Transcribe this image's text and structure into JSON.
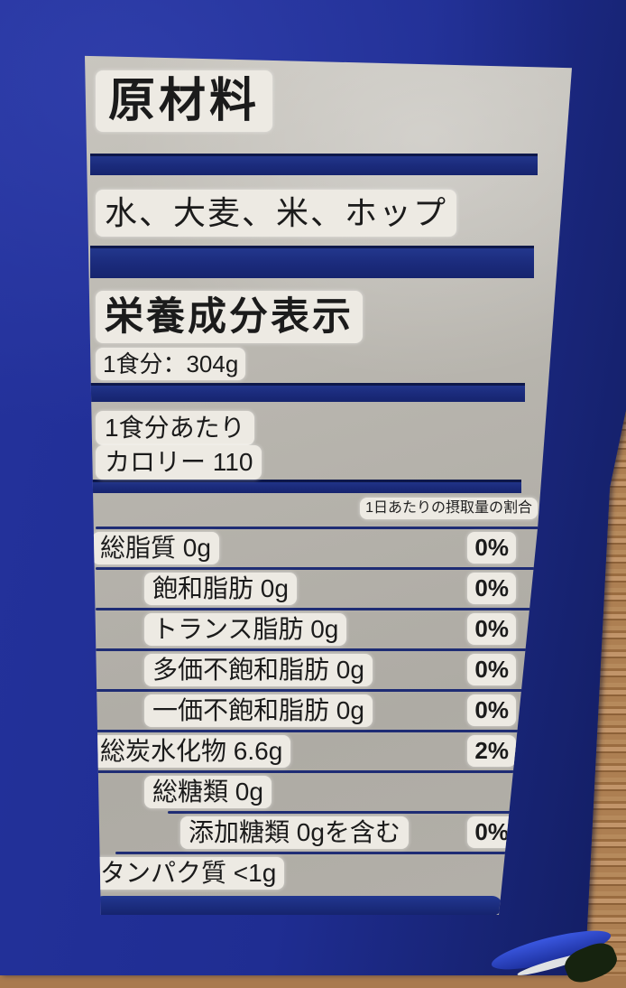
{
  "scene": {
    "description": "photo of a blue can on a wood table with a silver Japanese nutrition label"
  },
  "colors": {
    "can_blue": "#1f2d92",
    "bar_navy": "#1b2b7c",
    "label_silver": "#b5b2ab",
    "text_patch_white": "#edeae3",
    "text_black": "#1b1b1b",
    "wood_tan": "#ad7f52"
  },
  "label": {
    "ingredients_title": "原材料",
    "ingredients_list": "水、大麦、米、ホップ",
    "nutrition_title": "栄養成分表示",
    "serving_size": "1食分：304g",
    "per_serving_heading": "1食分あたり",
    "calories_label": "カロリー",
    "calories_value": "110",
    "daily_value_note": "1日あたりの摂取量の割合",
    "nutrients": [
      {
        "name": "総脂質 0g",
        "daily_value": "0%",
        "level": 0
      },
      {
        "name": "飽和脂肪 0g",
        "daily_value": "0%",
        "level": 1
      },
      {
        "name": "トランス脂肪 0g",
        "daily_value": "0%",
        "level": 1
      },
      {
        "name": "多価不飽和脂肪 0g",
        "daily_value": "0%",
        "level": 1
      },
      {
        "name": "一価不飽和脂肪 0g",
        "daily_value": "0%",
        "level": 1
      },
      {
        "name": "総炭水化物 6.6g",
        "daily_value": "2%",
        "level": 0
      },
      {
        "name": "総糖類 0g",
        "daily_value": "",
        "level": 1
      },
      {
        "name": "添加糖類 0gを含む",
        "daily_value": "0%",
        "level": 2
      },
      {
        "name": "タンパク質 <1g",
        "daily_value": "",
        "level": 0
      }
    ]
  }
}
